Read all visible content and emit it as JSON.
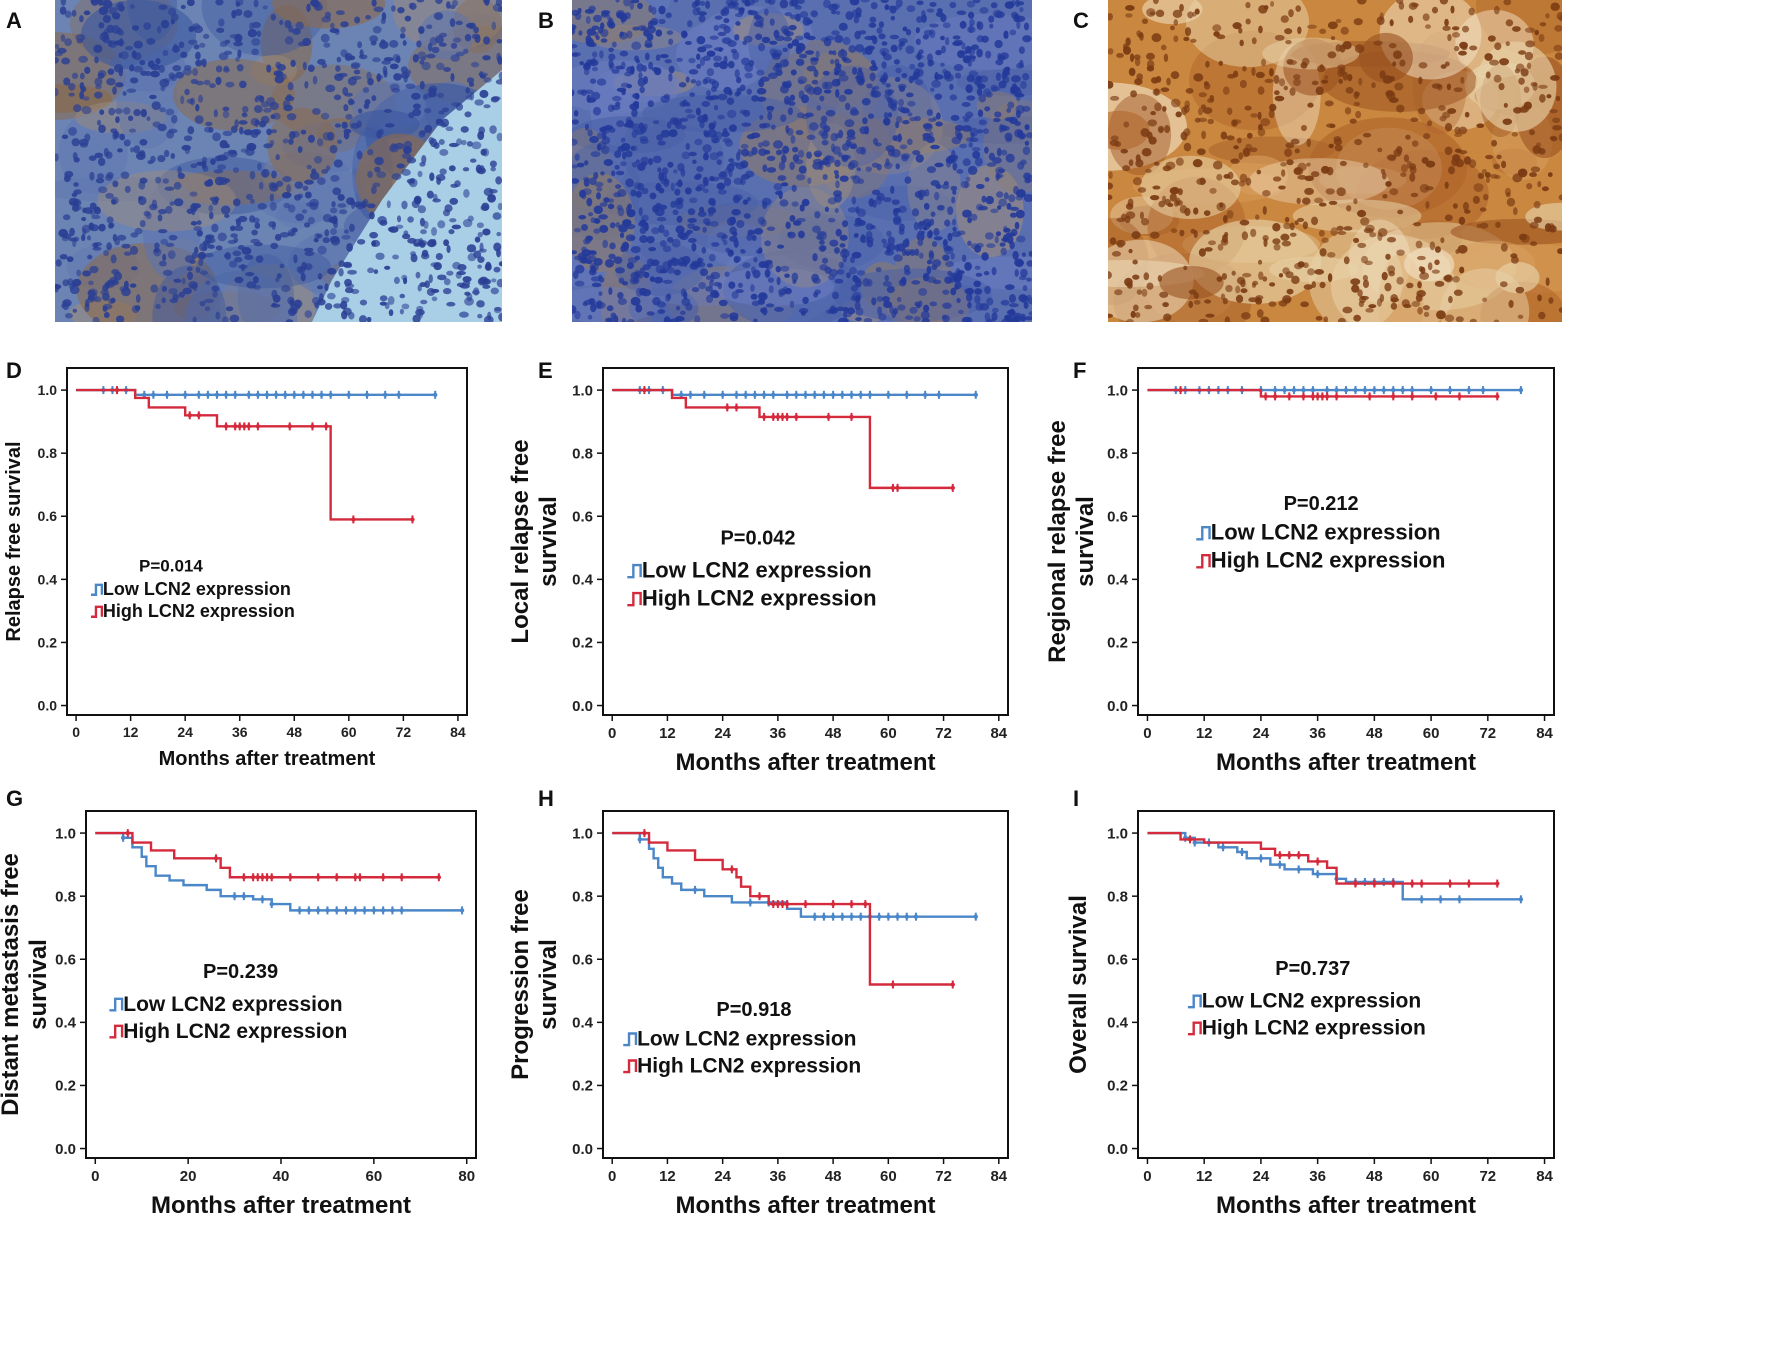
{
  "panel_letters": [
    "A",
    "B",
    "C",
    "D",
    "E",
    "F",
    "G",
    "H",
    "I"
  ],
  "photos": [
    {
      "letter": "A",
      "subject": "IHC stained tissue section, weak staining, blue nuclei with brown cells"
    },
    {
      "letter": "B",
      "subject": "IHC stained tissue section, mostly blue nuclei"
    },
    {
      "letter": "C",
      "subject": "IHC stained tissue section, strong brown staining"
    }
  ],
  "colors": {
    "low": "#4a86c8",
    "high": "#d42a3c",
    "photo_a_base": "#6c84b4",
    "photo_b_base": "#5a6fb0",
    "photo_c_base": "#c9873f"
  },
  "chart_data": [
    {
      "type": "line",
      "letter": "D",
      "title": "",
      "xlabel": "Months after treatment",
      "ylabel": [
        "Relapse free survival"
      ],
      "x_ticks": [
        0,
        12,
        24,
        36,
        48,
        60,
        72,
        84
      ],
      "xlim": [
        -2,
        86
      ],
      "y_ticks": [
        "0.0",
        "0.2",
        "0.4",
        "0.6",
        "0.8",
        "1.0"
      ],
      "ylim": [
        -0.03,
        1.07
      ],
      "pvalue": "P=0.014",
      "legend": [
        "Low LCN2 expression",
        "High LCN2 expression"
      ],
      "series": [
        {
          "name": "Low LCN2 expression",
          "color_key": "low",
          "steps": [
            [
              0,
              1.0
            ],
            [
              13,
              0.985
            ],
            [
              79,
              0.985
            ]
          ],
          "censors": [
            6,
            8,
            11,
            15,
            17,
            20,
            24,
            27,
            29,
            31,
            33,
            35,
            38,
            40,
            42,
            44,
            46,
            48,
            50,
            52,
            54,
            56,
            60,
            64,
            68,
            71,
            79
          ]
        },
        {
          "name": "High LCN2 expression",
          "color_key": "high",
          "steps": [
            [
              0,
              1.0
            ],
            [
              13,
              0.975
            ],
            [
              16,
              0.945
            ],
            [
              24,
              0.92
            ],
            [
              31,
              0.885
            ],
            [
              56,
              0.59
            ],
            [
              74,
              0.59
            ]
          ],
          "censors": [
            9,
            25,
            27,
            33,
            35,
            36,
            37,
            38,
            40,
            47,
            52,
            55,
            61,
            74
          ]
        }
      ]
    },
    {
      "type": "line",
      "letter": "E",
      "title": "",
      "xlabel": "Months after treatment",
      "ylabel": [
        "Local relapse free",
        "survival"
      ],
      "x_ticks": [
        0,
        12,
        24,
        36,
        48,
        60,
        72,
        84
      ],
      "xlim": [
        -2,
        86
      ],
      "y_ticks": [
        "0.0",
        "0.2",
        "0.4",
        "0.6",
        "0.8",
        "1.0"
      ],
      "ylim": [
        -0.03,
        1.07
      ],
      "pvalue": "P=0.042",
      "legend": [
        "Low LCN2 expression",
        "High LCN2 expression"
      ],
      "series": [
        {
          "name": "Low LCN2 expression",
          "color_key": "low",
          "steps": [
            [
              0,
              1.0
            ],
            [
              13,
              0.985
            ],
            [
              79,
              0.985
            ]
          ],
          "censors": [
            6,
            8,
            11,
            15,
            17,
            20,
            24,
            27,
            29,
            31,
            33,
            35,
            38,
            40,
            42,
            44,
            46,
            48,
            50,
            52,
            54,
            56,
            60,
            64,
            68,
            71,
            79
          ]
        },
        {
          "name": "High LCN2 expression",
          "color_key": "high",
          "steps": [
            [
              0,
              1.0
            ],
            [
              13,
              0.975
            ],
            [
              16,
              0.945
            ],
            [
              32,
              0.915
            ],
            [
              56,
              0.69
            ],
            [
              74,
              0.69
            ]
          ],
          "censors": [
            7,
            25,
            27,
            33,
            35,
            36,
            37,
            38,
            40,
            47,
            52,
            61,
            62,
            74
          ]
        }
      ]
    },
    {
      "type": "line",
      "letter": "F",
      "title": "",
      "xlabel": "Months after treatment",
      "ylabel": [
        "Regional relapse free",
        "survival"
      ],
      "x_ticks": [
        0,
        12,
        24,
        36,
        48,
        60,
        72,
        84
      ],
      "xlim": [
        -2,
        86
      ],
      "y_ticks": [
        "0.0",
        "0.2",
        "0.4",
        "0.6",
        "0.8",
        "1.0"
      ],
      "ylim": [
        -0.03,
        1.07
      ],
      "pvalue": "P=0.212",
      "legend": [
        "Low LCN2 expression",
        "High LCN2 expression"
      ],
      "series": [
        {
          "name": "Low LCN2 expression",
          "color_key": "low",
          "steps": [
            [
              0,
              1.0
            ],
            [
              79,
              1.0
            ]
          ],
          "censors": [
            6,
            8,
            11,
            13,
            15,
            17,
            20,
            24,
            27,
            29,
            31,
            33,
            35,
            38,
            40,
            42,
            44,
            46,
            48,
            50,
            52,
            54,
            56,
            60,
            64,
            68,
            71,
            79
          ]
        },
        {
          "name": "High LCN2 expression",
          "color_key": "high",
          "steps": [
            [
              0,
              1.0
            ],
            [
              24,
              0.98
            ],
            [
              74,
              0.98
            ]
          ],
          "censors": [
            7,
            25,
            27,
            30,
            33,
            35,
            36,
            37,
            38,
            40,
            47,
            52,
            56,
            61,
            66,
            74
          ]
        }
      ]
    },
    {
      "type": "line",
      "letter": "G",
      "title": "",
      "xlabel": "Months after treatment",
      "ylabel": [
        "Distant metastasis free",
        "survival"
      ],
      "x_ticks": [
        0,
        20,
        40,
        60,
        80
      ],
      "xlim": [
        -2,
        82
      ],
      "y_ticks": [
        "0.0",
        "0.2",
        "0.4",
        "0.6",
        "0.8",
        "1.0"
      ],
      "ylim": [
        -0.03,
        1.07
      ],
      "pvalue": "P=0.239",
      "legend": [
        "Low LCN2 expression",
        "High  LCN2 expression"
      ],
      "series": [
        {
          "name": "Low LCN2 expression",
          "color_key": "low",
          "steps": [
            [
              0,
              1.0
            ],
            [
              6,
              0.985
            ],
            [
              8,
              0.955
            ],
            [
              10,
              0.925
            ],
            [
              11,
              0.895
            ],
            [
              13,
              0.865
            ],
            [
              16,
              0.85
            ],
            [
              19,
              0.835
            ],
            [
              24,
              0.82
            ],
            [
              27,
              0.8
            ],
            [
              34,
              0.79
            ],
            [
              38,
              0.775
            ],
            [
              42,
              0.755
            ],
            [
              79,
              0.755
            ]
          ],
          "censors": [
            6,
            30,
            32,
            36,
            38,
            44,
            46,
            48,
            50,
            52,
            54,
            56,
            58,
            60,
            62,
            64,
            66,
            79
          ]
        },
        {
          "name": "High LCN2 expression",
          "color_key": "high",
          "steps": [
            [
              0,
              1.0
            ],
            [
              8,
              0.97
            ],
            [
              12,
              0.945
            ],
            [
              17,
              0.92
            ],
            [
              27,
              0.89
            ],
            [
              29,
              0.86
            ],
            [
              74,
              0.86
            ]
          ],
          "censors": [
            7,
            26,
            32,
            34,
            35,
            36,
            37,
            38,
            42,
            48,
            52,
            56,
            57,
            62,
            66,
            74
          ]
        }
      ]
    },
    {
      "type": "line",
      "letter": "H",
      "title": "",
      "xlabel": "Months after treatment",
      "ylabel": [
        "Progression free",
        "survival"
      ],
      "x_ticks": [
        0,
        12,
        24,
        36,
        48,
        60,
        72,
        84
      ],
      "xlim": [
        -2,
        86
      ],
      "y_ticks": [
        "0.0",
        "0.2",
        "0.4",
        "0.6",
        "0.8",
        "1.0"
      ],
      "ylim": [
        -0.03,
        1.07
      ],
      "pvalue": "P=0.918",
      "legend": [
        "Low LCN2 expression",
        "High LCN2 expression"
      ],
      "series": [
        {
          "name": "Low LCN2 expression",
          "color_key": "low",
          "steps": [
            [
              0,
              1.0
            ],
            [
              6,
              0.98
            ],
            [
              8,
              0.95
            ],
            [
              9,
              0.92
            ],
            [
              10,
              0.89
            ],
            [
              11,
              0.86
            ],
            [
              13,
              0.84
            ],
            [
              15,
              0.82
            ],
            [
              20,
              0.8
            ],
            [
              26,
              0.78
            ],
            [
              38,
              0.76
            ],
            [
              41,
              0.735
            ],
            [
              79,
              0.735
            ]
          ],
          "censors": [
            6,
            18,
            30,
            34,
            44,
            46,
            48,
            50,
            52,
            54,
            56,
            58,
            60,
            62,
            64,
            66,
            79
          ]
        },
        {
          "name": "High LCN2 expression",
          "color_key": "high",
          "steps": [
            [
              0,
              1.0
            ],
            [
              8,
              0.97
            ],
            [
              12,
              0.945
            ],
            [
              18,
              0.915
            ],
            [
              24,
              0.885
            ],
            [
              27,
              0.86
            ],
            [
              28,
              0.83
            ],
            [
              30,
              0.8
            ],
            [
              34,
              0.775
            ],
            [
              56,
              0.52
            ],
            [
              74,
              0.52
            ]
          ],
          "censors": [
            7,
            26,
            32,
            35,
            36,
            37,
            38,
            42,
            48,
            52,
            55,
            61,
            74
          ]
        }
      ]
    },
    {
      "type": "line",
      "letter": "I",
      "title": "",
      "xlabel": "Months after treatment",
      "ylabel": [
        "Overall survival"
      ],
      "x_ticks": [
        0,
        12,
        24,
        36,
        48,
        60,
        72,
        84
      ],
      "xlim": [
        -2,
        86
      ],
      "y_ticks": [
        "0.0",
        "0.2",
        "0.4",
        "0.6",
        "0.8",
        "1.0"
      ],
      "ylim": [
        -0.03,
        1.07
      ],
      "pvalue": "P=0.737",
      "legend": [
        "Low LCN2 expression",
        "High LCN2 expression"
      ],
      "series": [
        {
          "name": "Low LCN2 expression",
          "color_key": "low",
          "steps": [
            [
              0,
              1.0
            ],
            [
              8,
              0.985
            ],
            [
              10,
              0.97
            ],
            [
              15,
              0.955
            ],
            [
              19,
              0.94
            ],
            [
              21,
              0.92
            ],
            [
              26,
              0.9
            ],
            [
              29,
              0.885
            ],
            [
              35,
              0.87
            ],
            [
              40,
              0.855
            ],
            [
              42,
              0.845
            ],
            [
              54,
              0.79
            ],
            [
              79,
              0.79
            ]
          ],
          "censors": [
            8,
            10,
            13,
            16,
            20,
            24,
            28,
            32,
            36,
            40,
            44,
            46,
            48,
            50,
            52,
            58,
            62,
            66,
            79
          ]
        },
        {
          "name": "High LCN2 expression",
          "color_key": "high",
          "steps": [
            [
              0,
              1.0
            ],
            [
              7,
              0.98
            ],
            [
              12,
              0.97
            ],
            [
              24,
              0.95
            ],
            [
              27,
              0.93
            ],
            [
              34,
              0.91
            ],
            [
              38,
              0.89
            ],
            [
              40,
              0.84
            ],
            [
              74,
              0.84
            ]
          ],
          "censors": [
            9,
            28,
            30,
            32,
            36,
            44,
            48,
            52,
            56,
            58,
            64,
            68,
            74
          ]
        }
      ]
    }
  ]
}
